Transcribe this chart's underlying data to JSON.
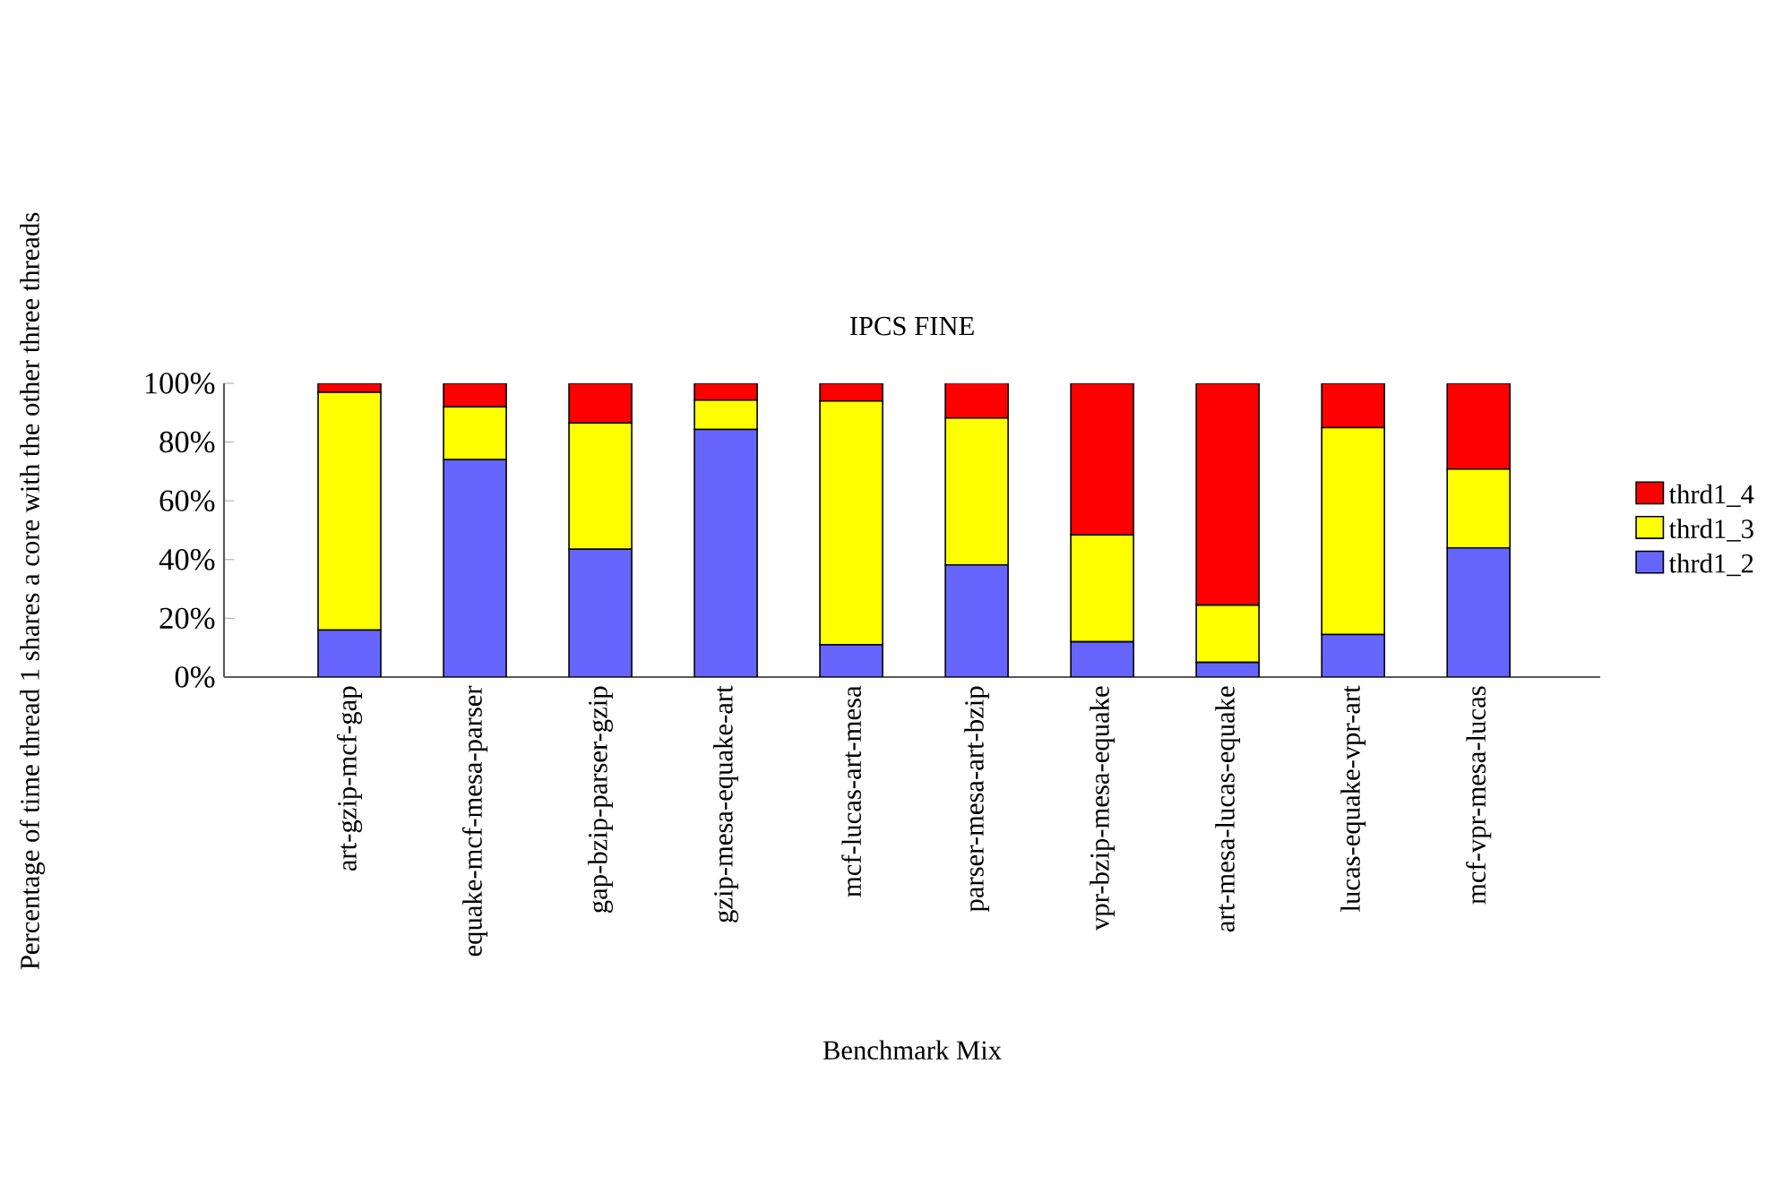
{
  "chart_data": {
    "type": "bar",
    "stacked": true,
    "title": "IPCS FINE",
    "xlabel": "Benchmark Mix",
    "ylabel": "Percentage of time thread 1 shares a core with the other three threads",
    "categories": [
      "art-gzip-mcf-gap",
      "equake-mcf-mesa-parser",
      "gap-bzip-parser-gzip",
      "gzip-mesa-equake-art",
      "mcf-lucas-art-mesa",
      "parser-mesa-art-bzip",
      "vpr-bzip-mesa-equake",
      "art-mesa-lucas-equake",
      "lucas-equake-vpr-art",
      "mcf-vpr-mesa-lucas"
    ],
    "series": [
      {
        "name": "thrd1_2",
        "color": "#6666ff",
        "values": [
          16,
          74,
          43.5,
          84.3,
          11,
          38.2,
          12,
          5,
          14.5,
          44
        ]
      },
      {
        "name": "thrd1_3",
        "color": "#ffff00",
        "values": [
          81,
          18,
          43,
          10,
          83,
          50,
          36.4,
          19.5,
          70.4,
          26.8
        ]
      },
      {
        "name": "thrd1_4",
        "color": "#ff0000",
        "values": [
          3,
          8,
          13.5,
          5.7,
          6,
          12,
          51.6,
          75.5,
          15.1,
          29.2
        ]
      }
    ],
    "ylim": [
      0,
      100
    ],
    "yticks": [
      {
        "value": 0,
        "label": "0%"
      },
      {
        "value": 20,
        "label": "20%"
      },
      {
        "value": 40,
        "label": "40%"
      },
      {
        "value": 60,
        "label": "60%"
      },
      {
        "value": 80,
        "label": "80%"
      },
      {
        "value": 100,
        "label": "100%"
      }
    ],
    "legend": "right"
  }
}
